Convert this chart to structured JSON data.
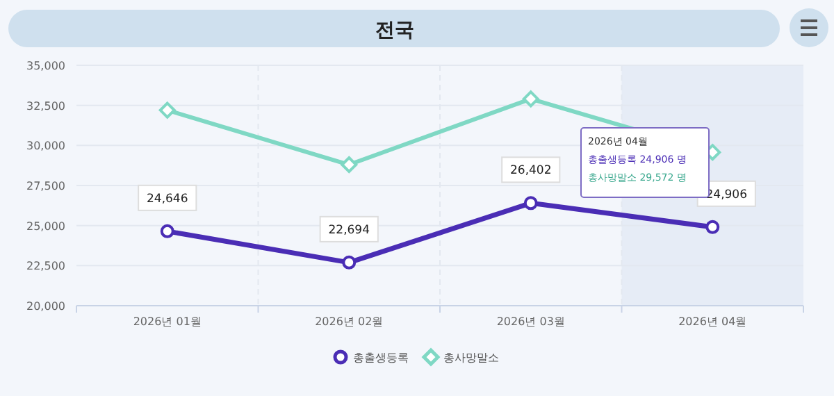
{
  "chart_data": {
    "type": "line",
    "title": "전국",
    "categories": [
      "2026년 01월",
      "2026년 02월",
      "2026년 03월",
      "2026년 04월"
    ],
    "series": [
      {
        "name": "총출생등록",
        "color": "#4a2db5",
        "marker": "circle",
        "values": [
          24646,
          22694,
          26402,
          24906
        ],
        "value_labels": [
          "24,646",
          "22,694",
          "26,402",
          "24,906"
        ]
      },
      {
        "name": "총사망말소",
        "color": "#7fd8c4",
        "marker": "diamond",
        "values": [
          32200,
          28800,
          32900,
          29572
        ]
      }
    ],
    "ylim": [
      20000,
      35000
    ],
    "yticks": [
      {
        "value": 20000,
        "label": "20,000"
      },
      {
        "value": 22500,
        "label": "22,500"
      },
      {
        "value": 25000,
        "label": "25,000"
      },
      {
        "value": 27500,
        "label": "27,500"
      },
      {
        "value": 30000,
        "label": "30,000"
      },
      {
        "value": 32500,
        "label": "32,500"
      },
      {
        "value": 35000,
        "label": "35,000"
      }
    ],
    "grid": true,
    "legend": "bottom",
    "bands": [
      {
        "axis": "x",
        "from": "2026년 04월",
        "to": "2026년 04월",
        "color": "#e6ecf6"
      }
    ],
    "annotations": [
      "2026년 04월",
      "총출생등록 24,906 명",
      "총사망말소 29,572 명"
    ]
  }
}
